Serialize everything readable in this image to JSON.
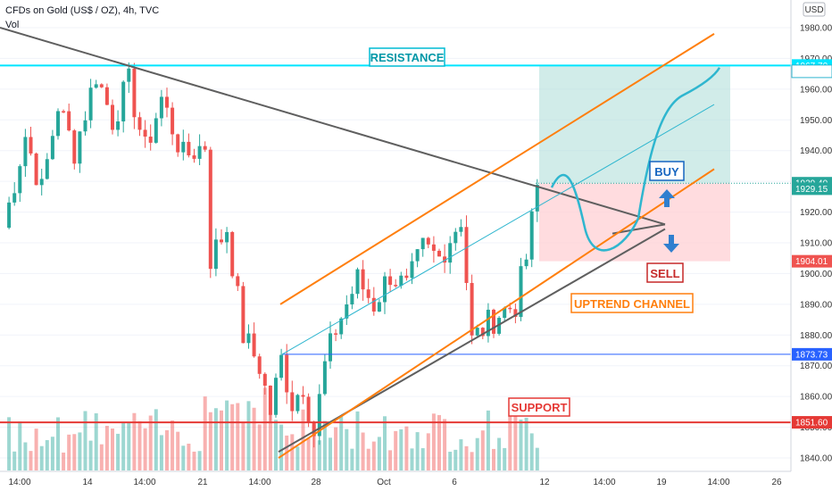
{
  "header": {
    "symbol": "CFDs on Gold (US$ / OZ), 4h, TVC",
    "indicator": "Vol"
  },
  "currency_button": "USD",
  "colors": {
    "up": "#26a69a",
    "down": "#ef5350",
    "resistance": "#00e5ff",
    "support": "#e53935",
    "channel": "#ff7f0e",
    "trend": "#5f5f5f",
    "projection": "#2fb6cf",
    "level": "#2962ff",
    "arrow": "#2f7fcf",
    "profit_zone": "#b2dfdb",
    "loss_zone": "#ffcdd2"
  },
  "chart_data": {
    "type": "candlestick",
    "y_axis": {
      "ticks": [
        1840,
        1850,
        1860,
        1870,
        1880,
        1890,
        1900,
        1910,
        1920,
        1930,
        1940,
        1950,
        1960,
        1970,
        1980
      ],
      "range": [
        1837,
        1985
      ],
      "side": "right"
    },
    "x_axis": {
      "ticks": [
        "14:00",
        "14",
        "14:00",
        "21",
        "14:00",
        "28",
        "Oct",
        "6",
        "12",
        "14:00",
        "19",
        "14:00",
        "26"
      ]
    },
    "price_tags": [
      {
        "label": "1967.70",
        "value": 1967.7,
        "style": "resistance"
      },
      {
        "label": "1967.26",
        "value": 1965.8,
        "style": "target"
      },
      {
        "label": "1929.40",
        "value": 1929.4,
        "style": "current"
      },
      {
        "label": "1929.15",
        "value": 1927.6,
        "style": "current"
      },
      {
        "label": "1904.01",
        "value": 1904.0,
        "style": "stop"
      },
      {
        "label": "1873.73",
        "value": 1873.73,
        "style": "level"
      },
      {
        "label": "1851.60",
        "value": 1851.6,
        "style": "support"
      }
    ],
    "levels": {
      "resistance": 1967.7,
      "support": 1851.6,
      "horizontal": 1873.73,
      "current": 1929.4
    },
    "position": {
      "entry": 1929.4,
      "target": 1967.7,
      "stop": 1904.0
    },
    "annotations": {
      "resistance": "RESISTANCE",
      "support": "SUPPORT",
      "buy": "BUY",
      "sell": "SELL",
      "channel": "UPTREND CHANNEL"
    },
    "price_path": [
      [
        0,
        1915
      ],
      [
        4,
        1945
      ],
      [
        7,
        1927
      ],
      [
        10,
        1955
      ],
      [
        13,
        1940
      ],
      [
        17,
        1965
      ],
      [
        20,
        1950
      ],
      [
        23,
        1962
      ],
      [
        26,
        1940
      ],
      [
        29,
        1957
      ],
      [
        33,
        1938
      ],
      [
        37,
        1942
      ],
      [
        38,
        1905
      ],
      [
        41,
        1915
      ],
      [
        44,
        1880
      ],
      [
        47,
        1870
      ],
      [
        49,
        1855
      ],
      [
        51,
        1872
      ],
      [
        53,
        1858
      ],
      [
        55,
        1864
      ],
      [
        57,
        1848
      ],
      [
        59,
        1870
      ],
      [
        61,
        1882
      ],
      [
        63,
        1890
      ],
      [
        65,
        1898
      ],
      [
        68,
        1890
      ],
      [
        71,
        1900
      ],
      [
        74,
        1895
      ],
      [
        77,
        1908
      ],
      [
        80,
        1905
      ],
      [
        83,
        1915
      ],
      [
        84,
        1918
      ],
      [
        86,
        1878
      ],
      [
        88,
        1882
      ],
      [
        91,
        1887
      ],
      [
        94,
        1890
      ],
      [
        96,
        1905
      ],
      [
        98,
        1928
      ]
    ],
    "ohlc_seed": 7
  }
}
